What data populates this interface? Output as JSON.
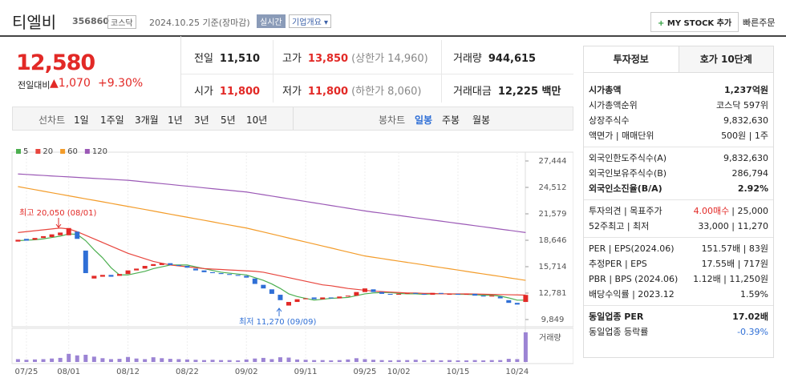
{
  "header": {
    "name": "티엘비",
    "code": "356860",
    "market": "코스닥",
    "date": "2024.10.25 기준(장마감)",
    "realtime": "실시간",
    "company": "기업개요",
    "mystock": "MY STOCK 추가",
    "order": "빠른주문"
  },
  "quote": {
    "price": "12,580",
    "change_label": "전일대비",
    "change": "1,070",
    "rate": "+9.30%",
    "stats": [
      {
        "label": "전일",
        "value": "11,510"
      },
      {
        "label": "고가",
        "value": "13,850",
        "note": "(상한가 14,960)"
      },
      {
        "label": "거래량",
        "value": "944,615"
      },
      {
        "label": "시가",
        "value": "11,800"
      },
      {
        "label": "저가",
        "value": "11,800",
        "note": "(하한가 8,060)"
      },
      {
        "label": "거래대금",
        "value": "12,225 백만"
      }
    ]
  },
  "chart_tabs": {
    "line": "선차트",
    "periods": [
      "1일",
      "1주일",
      "3개월",
      "1년",
      "3년",
      "5년",
      "10년"
    ],
    "candle": "봉차트",
    "candle_periods": [
      "일봉",
      "주봉",
      "월봉"
    ]
  },
  "chart_data": {
    "type": "candlestick",
    "categories": [
      null,
      "07/25",
      null,
      null,
      null,
      null,
      "08/01",
      null,
      null,
      null,
      null,
      null,
      null,
      "08/12",
      null,
      null,
      null,
      null,
      null,
      null,
      "08/22",
      null,
      null,
      null,
      null,
      null,
      null,
      "09/02",
      null,
      null,
      null,
      null,
      null,
      null,
      "09/11",
      null,
      null,
      null,
      null,
      null,
      null,
      "09/25",
      null,
      null,
      null,
      "10/02",
      null,
      null,
      null,
      null,
      null,
      null,
      "10/15",
      null,
      null,
      null,
      null,
      null,
      null,
      "10/24",
      null
    ],
    "open": [
      18500,
      18800,
      18700,
      18900,
      19000,
      19200,
      19200,
      19600,
      17500,
      14400,
      14600,
      14800,
      14700,
      14900,
      15300,
      15500,
      15800,
      15900,
      16100,
      15900,
      15800,
      15500,
      15300,
      15100,
      15000,
      14900,
      14800,
      14700,
      14400,
      13700,
      13200,
      12600,
      11400,
      11800,
      12100,
      12300,
      12100,
      12300,
      12200,
      12400,
      12500,
      12900,
      13200,
      12900,
      12700,
      12600,
      12700,
      12800,
      12700,
      12600,
      12800,
      12600,
      12700,
      12600,
      12700,
      12500,
      12400,
      12400,
      12000,
      11700,
      11800
    ],
    "close": [
      18700,
      18600,
      18900,
      19100,
      19300,
      19500,
      20000,
      18800,
      15000,
      14700,
      14800,
      14600,
      14900,
      15300,
      15500,
      15800,
      16000,
      16100,
      15900,
      15800,
      15600,
      15300,
      15100,
      15000,
      14900,
      14800,
      14700,
      14500,
      13800,
      13300,
      12700,
      12000,
      11800,
      12100,
      12200,
      12100,
      12300,
      12200,
      12400,
      12500,
      12900,
      13300,
      12900,
      12700,
      12600,
      12700,
      12800,
      12700,
      12600,
      12800,
      12700,
      12700,
      12600,
      12700,
      12500,
      12400,
      12500,
      12200,
      11700,
      11510,
      12580
    ],
    "up_color": "#e22926",
    "down_color": "#2f6fd6",
    "moving_averages": [
      {
        "name": "5",
        "color": "#4caf50",
        "values": [
          18600,
          18650,
          18700,
          18800,
          18950,
          19100,
          19350,
          19300,
          18600,
          17600,
          16700,
          15600,
          14800,
          14800,
          15000,
          15200,
          15500,
          15700,
          15900,
          15900,
          15900,
          15700,
          15500,
          15300,
          15100,
          15000,
          14900,
          14800,
          14500,
          14200,
          13800,
          13300,
          12700,
          12400,
          12200,
          12000,
          12100,
          12200,
          12250,
          12300,
          12500,
          12700,
          12800,
          12850,
          12850,
          12750,
          12700,
          12700,
          12650,
          12700,
          12700,
          12700,
          12650,
          12650,
          12600,
          12550,
          12550,
          12450,
          12250,
          12000,
          12000
        ]
      },
      {
        "name": "20",
        "color": "#e8463e",
        "values": [
          19500,
          19600,
          19700,
          19800,
          19900,
          20000,
          19900,
          19600,
          19200,
          18800,
          18400,
          18000,
          17600,
          17200,
          16900,
          16600,
          16300,
          16100,
          15900,
          15800,
          15700,
          15600,
          15500,
          15450,
          15400,
          15350,
          15300,
          15250,
          15200,
          15100,
          14900,
          14700,
          14500,
          14300,
          14100,
          13900,
          13700,
          13600,
          13450,
          13300,
          13200,
          13100,
          13000,
          12950,
          12900,
          12850,
          12800,
          12800,
          12750,
          12750,
          12700,
          12700,
          12700,
          12700,
          12680,
          12660,
          12640,
          12620,
          12600,
          12580,
          12560
        ]
      },
      {
        "name": "60",
        "color": "#f39c2a",
        "values": [
          24600,
          24430,
          24260,
          24090,
          23920,
          23750,
          23580,
          23410,
          23240,
          23080,
          22910,
          22740,
          22570,
          22400,
          22230,
          22060,
          21890,
          21710,
          21540,
          21370,
          21200,
          21030,
          20860,
          20690,
          20510,
          20340,
          20170,
          20000,
          19780,
          19560,
          19340,
          19120,
          18890,
          18670,
          18450,
          18230,
          18010,
          17790,
          17560,
          17340,
          17120,
          16900,
          16760,
          16620,
          16470,
          16330,
          16190,
          16050,
          15910,
          15760,
          15620,
          15480,
          15340,
          15190,
          15050,
          14910,
          14770,
          14630,
          14480,
          14340,
          14200
        ]
      },
      {
        "name": "120",
        "color": "#9b59b6",
        "values": [
          26000,
          25950,
          25890,
          25840,
          25780,
          25730,
          25680,
          25620,
          25570,
          25510,
          25460,
          25410,
          25350,
          25300,
          25210,
          25110,
          25020,
          24930,
          24840,
          24740,
          24650,
          24560,
          24460,
          24370,
          24280,
          24190,
          24090,
          24000,
          23850,
          23700,
          23550,
          23400,
          23250,
          23100,
          22950,
          22800,
          22650,
          22500,
          22350,
          22200,
          22050,
          21900,
          21770,
          21650,
          21520,
          21400,
          21270,
          21140,
          21020,
          20890,
          20770,
          20640,
          20510,
          20390,
          20260,
          20140,
          20010,
          19880,
          19760,
          19630,
          19500
        ]
      }
    ],
    "volume": {
      "name": "거래량",
      "color": "#9c84d4",
      "values": [
        90000,
        70000,
        80000,
        90000,
        110000,
        130000,
        260000,
        210000,
        230000,
        170000,
        120000,
        90000,
        100000,
        160000,
        110000,
        90000,
        150000,
        120000,
        100000,
        90000,
        80000,
        70000,
        60000,
        70000,
        60000,
        60000,
        50000,
        80000,
        110000,
        130000,
        90000,
        150000,
        140000,
        80000,
        70000,
        60000,
        60000,
        50000,
        60000,
        80000,
        120000,
        90000,
        70000,
        60000,
        50000,
        60000,
        60000,
        70000,
        50000,
        60000,
        50000,
        60000,
        50000,
        50000,
        60000,
        50000,
        60000,
        60000,
        100000,
        90000,
        944615
      ]
    },
    "ylim": [
      9849,
      27444
    ],
    "yticks": [
      {
        "value": 9849,
        "label": "9,849"
      },
      {
        "value": 12781,
        "label": "12,781"
      },
      {
        "value": 15714,
        "label": "15,714"
      },
      {
        "value": 18646,
        "label": "18,646"
      },
      {
        "value": 21579,
        "label": "21,579"
      },
      {
        "value": 24512,
        "label": "24,512"
      },
      {
        "value": 27444,
        "label": "27,444"
      }
    ],
    "annotations": [
      {
        "text": "최고 20,050 (08/01)",
        "color": "#e22926"
      },
      {
        "text": "최저 11,270 (09/09)",
        "color": "#2f6fd6"
      }
    ]
  },
  "invest_tabs": [
    "투자정보",
    "호가 10단계"
  ],
  "invest": [
    [
      {
        "label": "시가총액",
        "value": "1,237억원",
        "bold": true
      },
      {
        "label": "시가총액순위",
        "value": "코스닥 597위"
      },
      {
        "label": "상장주식수",
        "value": "9,832,630"
      },
      {
        "label": "액면가 | 매매단위",
        "value": "500원 | 1주"
      }
    ],
    [
      {
        "label": "외국인한도주식수(A)",
        "value": "9,832,630"
      },
      {
        "label": "외국인보유주식수(B)",
        "value": "286,794"
      },
      {
        "label": "외국인소진율(B/A)",
        "value": "2.92%",
        "bold": true
      }
    ],
    [
      {
        "label": "투자의견 | 목표주가",
        "value": "4.00매수",
        "value2": "| 25,000",
        "color": "#e22926"
      },
      {
        "label": "52주최고 | 최저",
        "value": "33,000 | 11,270"
      }
    ],
    [
      {
        "label": "PER | EPS(2024.06)",
        "value": "151.57배 | 83원"
      },
      {
        "label": "추정PER | EPS",
        "value": "17.55배 | 717원"
      },
      {
        "label": "PBR | BPS (2024.06)",
        "value": "1.12배 | 11,250원"
      },
      {
        "label": "배당수익률 | 2023.12",
        "value": "1.59%"
      }
    ],
    [
      {
        "label": "동일업종 PER",
        "value": "17.02배",
        "bold": true
      },
      {
        "label": "동일업종 등락률",
        "value": "-0.39%",
        "color": "#2f6fd6"
      }
    ]
  ]
}
